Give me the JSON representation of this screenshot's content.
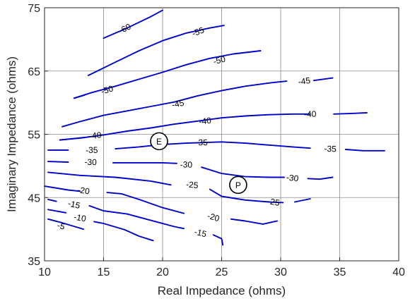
{
  "chart_data": {
    "type": "line",
    "subtype": "contour",
    "xlabel": "Real Impedance (ohms)",
    "ylabel": "Imaginary Impedance (ohms)",
    "xlim": [
      10,
      40
    ],
    "ylim": [
      35,
      75
    ],
    "xticks": [
      10,
      15,
      20,
      25,
      30,
      35,
      40
    ],
    "yticks": [
      35,
      45,
      55,
      65,
      75
    ],
    "grid": true,
    "line_color": "#0000cc",
    "contours": [
      {
        "level": "-60",
        "points": [
          [
            15,
            70.2
          ],
          [
            17,
            71.8
          ],
          [
            19,
            73.6
          ],
          [
            20,
            74.6
          ]
        ],
        "label_at": [
          16.8,
          71.7
        ]
      },
      {
        "level": "-55",
        "points": [
          [
            13.7,
            64.3
          ],
          [
            16,
            66.4
          ],
          [
            18,
            68.2
          ],
          [
            20,
            69.8
          ],
          [
            22,
            71.0
          ],
          [
            24,
            71.8
          ],
          [
            25.2,
            72.2
          ]
        ],
        "label_at": [
          23.0,
          71.2
        ]
      },
      {
        "level": "-50",
        "points": [
          [
            12.5,
            60.7
          ],
          [
            14,
            61.6
          ],
          [
            16,
            62.6
          ],
          [
            18,
            63.7
          ],
          [
            20,
            64.8
          ],
          [
            22,
            66.0
          ],
          [
            24,
            67.0
          ],
          [
            26,
            67.7
          ],
          [
            28.3,
            68.2
          ]
        ],
        "label_at": [
          24.8,
          66.7
        ]
      },
      {
        "level": "-50",
        "points": [
          [
            12.5,
            60.7
          ],
          [
            13.4,
            61.2
          ]
        ],
        "label_at": [
          15.3,
          62.0
        ]
      },
      {
        "level": "-45",
        "points": [
          [
            11.5,
            56.2
          ],
          [
            13,
            57.0
          ],
          [
            15,
            58.0
          ],
          [
            17,
            58.7
          ],
          [
            19,
            59.4
          ],
          [
            21,
            60.1
          ],
          [
            23,
            61.1
          ],
          [
            25,
            61.9
          ],
          [
            27,
            62.6
          ],
          [
            29,
            63.1
          ],
          [
            30.5,
            63.4
          ]
        ],
        "label_at": [
          21.3,
          59.8
        ]
      },
      {
        "level": "-45",
        "points": [
          [
            32.8,
            63.5
          ],
          [
            34.4,
            63.9
          ]
        ],
        "label_at": [
          32.0,
          63.4
        ]
      },
      {
        "level": "-40",
        "points": [
          [
            11.3,
            54.1
          ],
          [
            13,
            54.4
          ],
          [
            15,
            54.9
          ],
          [
            17,
            55.5
          ],
          [
            19,
            56.0
          ],
          [
            21,
            56.6
          ],
          [
            23,
            57.1
          ],
          [
            25,
            57.6
          ],
          [
            27,
            57.9
          ],
          [
            29,
            58.1
          ],
          [
            31,
            58.2
          ],
          [
            32.5,
            58.2
          ]
        ],
        "label_at": [
          23.6,
          57.1
        ]
      },
      {
        "level": "-40",
        "points": [
          [
            11.3,
            54.1
          ],
          [
            13.4,
            54.5
          ]
        ],
        "label_at": [
          14.3,
          54.8
        ]
      },
      {
        "level": "-40",
        "points": [
          [
            34.5,
            58.2
          ],
          [
            36,
            58.3
          ],
          [
            37.3,
            58.4
          ]
        ],
        "label_at": [
          32.5,
          58.2
        ]
      },
      {
        "level": "-35",
        "points": [
          [
            10.3,
            52.5
          ],
          [
            12,
            52.5
          ]
        ],
        "label_at": [
          14.0,
          52.5
        ]
      },
      {
        "level": "-35",
        "points": [
          [
            16,
            52.7
          ],
          [
            18,
            53.0
          ],
          [
            20,
            53.4
          ],
          [
            22,
            53.6
          ],
          [
            25,
            53.8
          ],
          [
            27,
            53.6
          ],
          [
            29,
            53.3
          ],
          [
            31,
            53.0
          ],
          [
            32.5,
            52.8
          ]
        ],
        "label_at": [
          23.3,
          53.7
        ]
      },
      {
        "level": "-35",
        "points": [
          [
            35.5,
            52.6
          ],
          [
            37,
            52.4
          ],
          [
            38.8,
            52.4
          ]
        ],
        "label_at": [
          34.2,
          52.7
        ]
      },
      {
        "level": "-30",
        "points": [
          [
            10.3,
            50.7
          ],
          [
            12,
            50.6
          ]
        ],
        "label_at": [
          13.9,
          50.6
        ]
      },
      {
        "level": "-30",
        "points": [
          [
            15.8,
            50.5
          ],
          [
            18,
            50.5
          ],
          [
            20,
            50.5
          ],
          [
            21.2,
            50.4
          ]
        ],
        "label_at": [
          22.0,
          50.2
        ]
      },
      {
        "level": "-30",
        "points": [
          [
            23.3,
            49.8
          ],
          [
            25,
            48.8
          ],
          [
            27,
            48.3
          ],
          [
            29,
            48.2
          ],
          [
            30.3,
            48.2
          ]
        ],
        "label_at": [
          31.0,
          48.1
        ]
      },
      {
        "level": "-30",
        "points": [
          [
            32.3,
            48.0
          ],
          [
            33.3,
            47.9
          ],
          [
            34.4,
            48.2
          ]
        ],
        "label_at": [
          31.0,
          48.1
        ]
      },
      {
        "level": "-25",
        "points": [
          [
            10.3,
            49.0
          ],
          [
            13,
            48.5
          ],
          [
            16,
            48.2
          ],
          [
            19,
            47.6
          ],
          [
            20.7,
            47.0
          ]
        ],
        "label_at": [
          22.5,
          47.0
        ]
      },
      {
        "level": "-25",
        "points": [
          [
            24,
            46.3
          ],
          [
            25,
            45.2
          ],
          [
            27,
            44.6
          ],
          [
            29,
            44.3
          ],
          [
            30.2,
            44.2
          ]
        ],
        "label_at": [
          29.4,
          44.3
        ]
      },
      {
        "level": "-25",
        "points": [
          [
            31.2,
            44.3
          ],
          [
            32.5,
            44.8
          ]
        ],
        "label_at": [
          29.4,
          44.3
        ]
      },
      {
        "level": "-20",
        "points": [
          [
            10,
            46.8
          ],
          [
            12,
            46.2
          ],
          [
            13,
            46.0
          ]
        ],
        "label_at": [
          13.3,
          46.1
        ]
      },
      {
        "level": "-20",
        "points": [
          [
            15.3,
            45.8
          ],
          [
            16.5,
            45.6
          ],
          [
            18,
            44.7
          ],
          [
            20,
            43.4
          ],
          [
            21.8,
            42.5
          ]
        ],
        "label_at": [
          24.3,
          41.9
        ]
      },
      {
        "level": "-20",
        "points": [
          [
            25.8,
            41.6
          ],
          [
            27,
            41.3
          ],
          [
            28.5,
            40.8
          ],
          [
            29.7,
            41.3
          ]
        ],
        "label_at": [
          24.3,
          41.9
        ]
      },
      {
        "level": "-15",
        "points": [
          [
            10.3,
            44.7
          ],
          [
            11,
            44.4
          ]
        ],
        "label_at": [
          12.5,
          43.9
        ]
      },
      {
        "level": "-15",
        "points": [
          [
            13.8,
            43.7
          ],
          [
            15,
            42.9
          ],
          [
            17,
            42.4
          ],
          [
            19,
            41.4
          ],
          [
            21,
            40.4
          ],
          [
            21.8,
            40.1
          ]
        ],
        "label_at": [
          23.2,
          39.4
        ]
      },
      {
        "level": "-15",
        "points": [
          [
            24.3,
            39.1
          ],
          [
            25,
            38.5
          ],
          [
            25.1,
            37.5
          ]
        ],
        "label_at": [
          23.2,
          39.4
        ]
      },
      {
        "level": "-10",
        "points": [
          [
            10.3,
            43.1
          ],
          [
            11.8,
            42.6
          ]
        ],
        "label_at": [
          13.0,
          41.8
        ]
      },
      {
        "level": "-10",
        "points": [
          [
            14.2,
            41.2
          ],
          [
            15,
            40.9
          ],
          [
            16.8,
            39.9
          ],
          [
            18,
            38.9
          ],
          [
            19.2,
            38.2
          ]
        ],
        "label_at": [
          13.0,
          41.8
        ]
      },
      {
        "level": "-5",
        "points": [
          [
            10.3,
            41.6
          ],
          [
            11.5,
            41.0
          ],
          [
            13.3,
            40.0
          ]
        ],
        "label_at": [
          11.4,
          40.5
        ]
      }
    ],
    "markers": [
      {
        "label": "E",
        "x": 19.7,
        "y": 53.9
      },
      {
        "label": "P",
        "x": 26.4,
        "y": 47.0
      }
    ]
  }
}
